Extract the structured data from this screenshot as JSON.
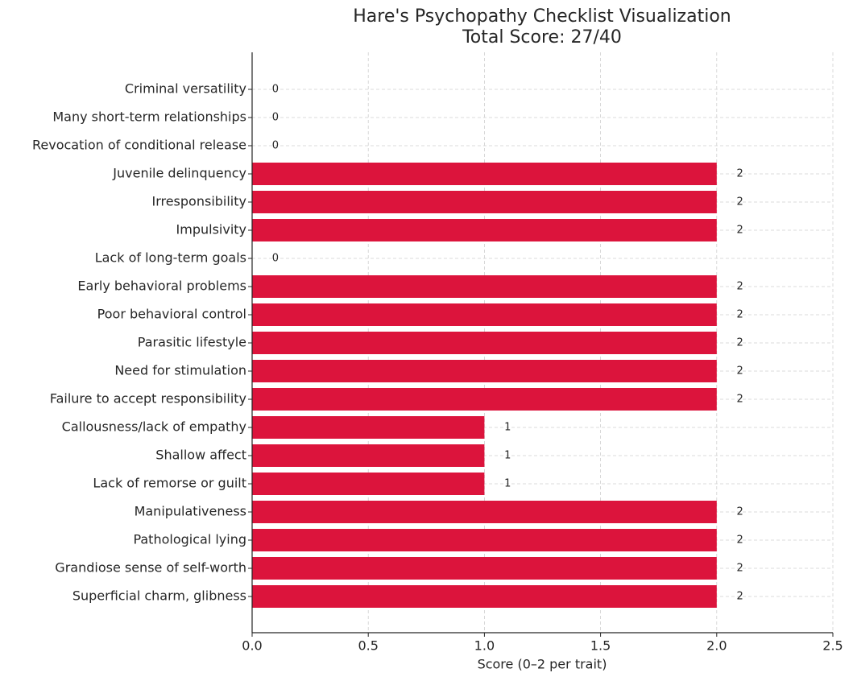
{
  "chart_data": {
    "type": "barh",
    "title": "Hare's Psychopathy Checklist Visualization",
    "subtitle": "Total Score: 27/40",
    "x_label": "Score (0–2 per trait)",
    "categories": [
      "Criminal versatility",
      "Many short-term relationships",
      "Revocation of conditional release",
      "Juvenile delinquency",
      "Irresponsibility",
      "Impulsivity",
      "Lack of long-term goals",
      "Early behavioral problems",
      "Poor behavioral control",
      "Parasitic lifestyle",
      "Need for stimulation",
      "Failure to accept responsibility",
      "Callousness/lack of empathy",
      "Shallow affect",
      "Lack of remorse or guilt",
      "Manipulativeness",
      "Pathological lying",
      "Grandiose sense of self-worth",
      "Superficial charm, glibness"
    ],
    "values": [
      0,
      0,
      0,
      2,
      2,
      2,
      0,
      2,
      2,
      2,
      2,
      2,
      1,
      1,
      1,
      2,
      2,
      2,
      2
    ],
    "color": "#dc143c",
    "xlim": [
      0,
      2.5
    ],
    "xticks": [
      {
        "value": 0,
        "label": "0.0"
      },
      0.5,
      {
        "value": 1,
        "label": "1.0"
      },
      1.5,
      {
        "value": 2,
        "label": "2.0"
      },
      2.5
    ],
    "grid": true
  }
}
